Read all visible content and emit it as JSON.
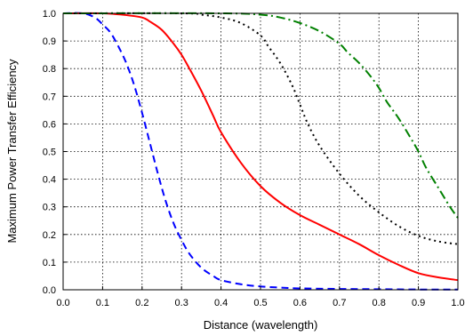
{
  "chart_data": {
    "type": "line",
    "title": "",
    "xlabel": "Distance (wavelength)",
    "ylabel": "Maximum Power Transfer Efficiency",
    "xlim": [
      0.0,
      1.0
    ],
    "ylim": [
      0.0,
      1.0
    ],
    "xticks": [
      "0.0",
      "0.1",
      "0.2",
      "0.3",
      "0.4",
      "0.5",
      "0.6",
      "0.7",
      "0.8",
      "0.9",
      "1.0"
    ],
    "yticks": [
      "0.0",
      "0.1",
      "0.2",
      "0.3",
      "0.4",
      "0.5",
      "0.6",
      "0.7",
      "0.8",
      "0.9",
      "1.0"
    ],
    "grid": true,
    "legend": null,
    "series": [
      {
        "color": "#0000ff",
        "dash": "dashed",
        "x": [
          0.0,
          0.05,
          0.08,
          0.1,
          0.12,
          0.14,
          0.16,
          0.18,
          0.2,
          0.22,
          0.24,
          0.26,
          0.28,
          0.3,
          0.32,
          0.35,
          0.38,
          0.4,
          0.45,
          0.5,
          0.55,
          0.6,
          0.7,
          0.8,
          0.9,
          1.0
        ],
        "y": [
          1.0,
          1.0,
          0.985,
          0.96,
          0.93,
          0.88,
          0.82,
          0.74,
          0.64,
          0.53,
          0.42,
          0.32,
          0.24,
          0.18,
          0.13,
          0.08,
          0.05,
          0.035,
          0.02,
          0.012,
          0.008,
          0.005,
          0.003,
          0.002,
          0.001,
          0.001
        ]
      },
      {
        "color": "#ff0000",
        "dash": "solid",
        "x": [
          0.0,
          0.1,
          0.15,
          0.2,
          0.22,
          0.25,
          0.28,
          0.3,
          0.32,
          0.35,
          0.38,
          0.4,
          0.45,
          0.5,
          0.55,
          0.6,
          0.65,
          0.7,
          0.75,
          0.8,
          0.85,
          0.9,
          0.95,
          1.0
        ],
        "y": [
          1.0,
          1.0,
          0.995,
          0.985,
          0.97,
          0.94,
          0.89,
          0.85,
          0.8,
          0.72,
          0.63,
          0.57,
          0.46,
          0.375,
          0.315,
          0.27,
          0.235,
          0.2,
          0.165,
          0.125,
          0.09,
          0.06,
          0.045,
          0.035
        ]
      },
      {
        "color": "#000000",
        "dash": "dotted",
        "x": [
          0.0,
          0.3,
          0.35,
          0.4,
          0.45,
          0.5,
          0.52,
          0.55,
          0.58,
          0.6,
          0.62,
          0.65,
          0.7,
          0.75,
          0.8,
          0.85,
          0.9,
          0.95,
          1.0
        ],
        "y": [
          1.0,
          1.0,
          0.995,
          0.985,
          0.965,
          0.92,
          0.88,
          0.82,
          0.74,
          0.67,
          0.6,
          0.52,
          0.42,
          0.34,
          0.28,
          0.23,
          0.195,
          0.175,
          0.165
        ]
      },
      {
        "color": "#008000",
        "dash": "dashdot",
        "x": [
          0.0,
          0.4,
          0.5,
          0.55,
          0.6,
          0.65,
          0.7,
          0.72,
          0.75,
          0.78,
          0.8,
          0.82,
          0.85,
          0.88,
          0.9,
          0.92,
          0.95,
          0.98,
          1.0
        ],
        "y": [
          1.0,
          1.0,
          0.995,
          0.985,
          0.965,
          0.935,
          0.89,
          0.86,
          0.82,
          0.77,
          0.73,
          0.68,
          0.62,
          0.55,
          0.5,
          0.44,
          0.37,
          0.3,
          0.26
        ]
      }
    ]
  }
}
